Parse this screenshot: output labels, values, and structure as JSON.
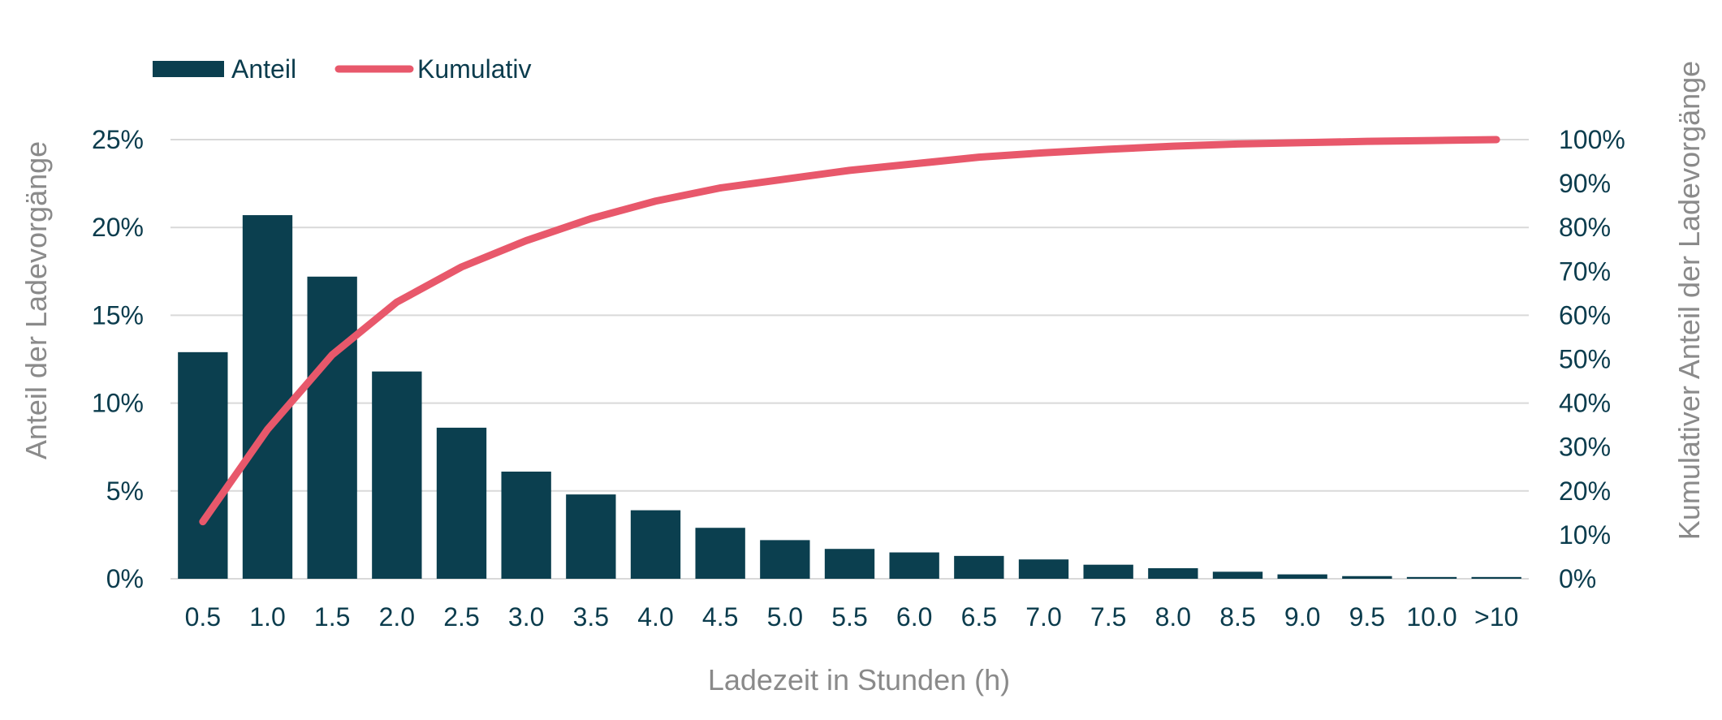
{
  "chart_data": {
    "type": "bar",
    "categories": [
      "0.5",
      "1.0",
      "1.5",
      "2.0",
      "2.5",
      "3.0",
      "3.5",
      "4.0",
      "4.5",
      "5.0",
      "5.5",
      "6.0",
      "6.5",
      "7.0",
      "7.5",
      "8.0",
      "8.5",
      "9.0",
      "9.5",
      "10.0",
      ">10"
    ],
    "series": [
      {
        "name": "Anteil",
        "type": "bar",
        "axis": "left",
        "color": "#0b3f4f",
        "values": [
          12.9,
          20.7,
          17.2,
          11.8,
          8.6,
          6.1,
          4.8,
          3.9,
          2.9,
          2.2,
          1.7,
          1.5,
          1.3,
          1.1,
          0.8,
          0.6,
          0.4,
          0.25,
          0.15,
          0.1,
          0.1
        ]
      },
      {
        "name": "Kumulativ",
        "type": "line",
        "axis": "right",
        "color": "#e8586b",
        "values": [
          13,
          34,
          51,
          63,
          71,
          77,
          82,
          86,
          89,
          91,
          93,
          94.5,
          96,
          97,
          97.8,
          98.5,
          99,
          99.3,
          99.6,
          99.8,
          100
        ]
      }
    ],
    "xlabel": "Ladezeit in Stunden (h)",
    "ylabel": "Anteil der Ladevorgänge",
    "y2label": "Kumulativer Anteil der Ladevorgänge",
    "ylim": [
      0,
      25
    ],
    "y2lim": [
      0,
      100
    ],
    "yticks": [
      "0%",
      "5%",
      "10%",
      "15%",
      "20%",
      "25%"
    ],
    "y2ticks": [
      "0%",
      "10%",
      "20%",
      "30%",
      "40%",
      "50%",
      "60%",
      "70%",
      "80%",
      "90%",
      "100%"
    ],
    "grid": true,
    "legend_position": "top-left"
  }
}
